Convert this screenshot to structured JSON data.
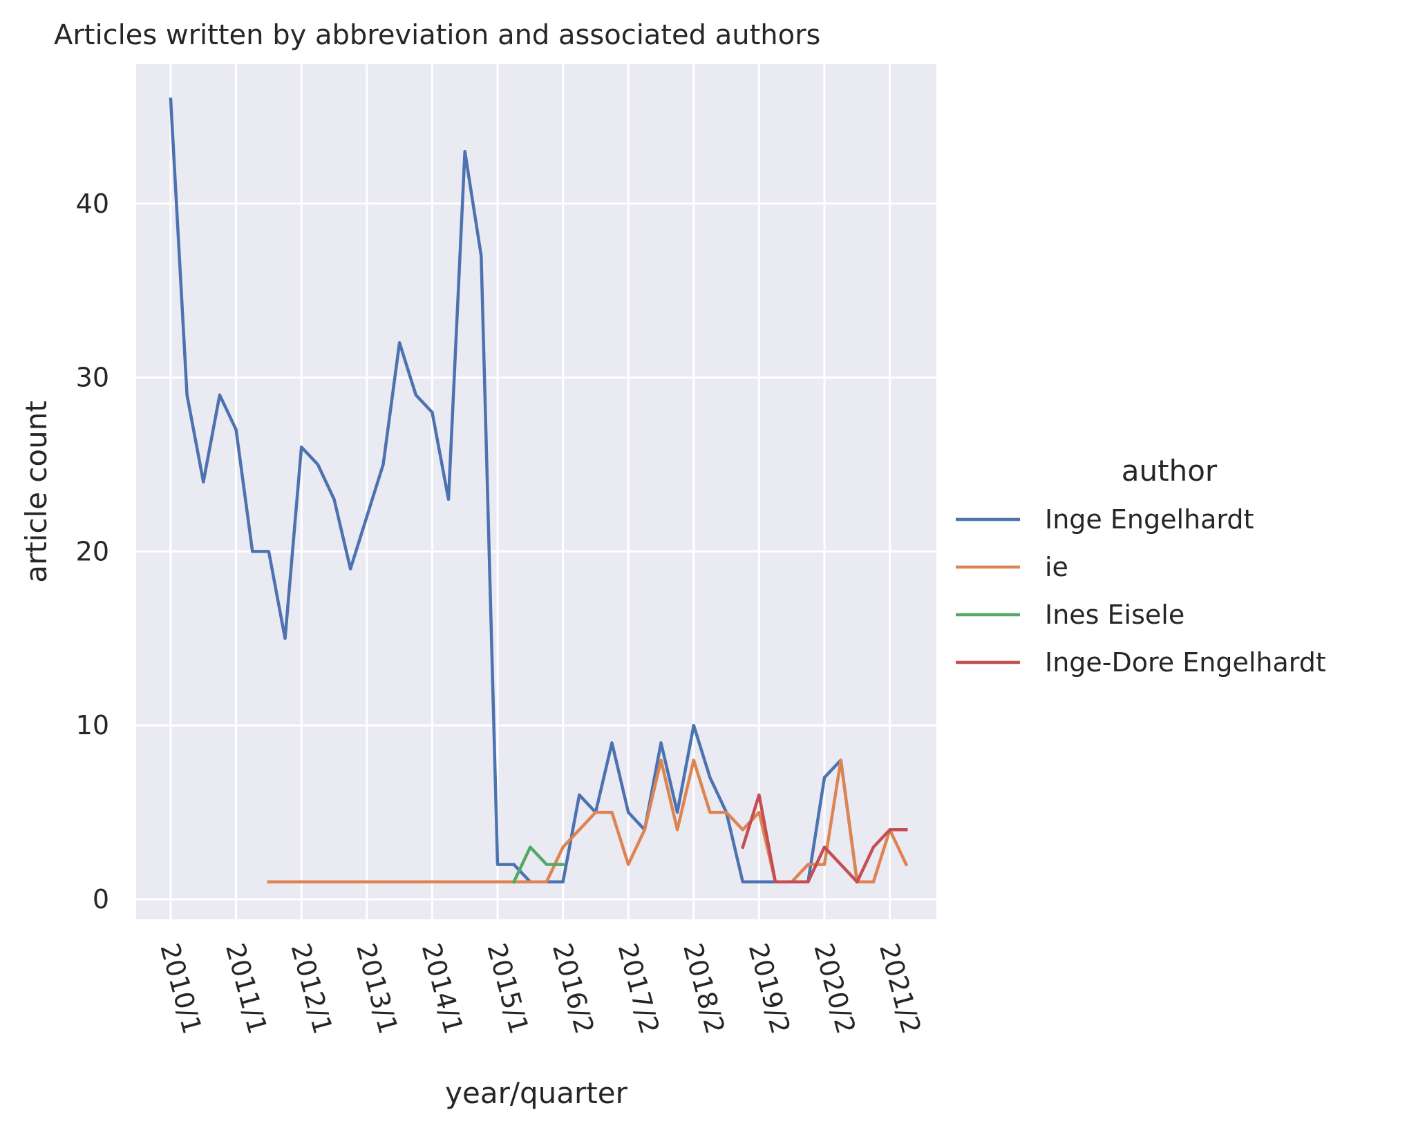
{
  "chart_data": {
    "type": "line",
    "title": "Articles written by abbreviation and associated authors",
    "xlabel": "year/quarter",
    "ylabel": "article count",
    "ylim": [
      -1.2,
      48.5
    ],
    "yticks": [
      0,
      10,
      20,
      30,
      40
    ],
    "grid": true,
    "legend_title": "author",
    "legend_position": "right",
    "categories": [
      "2010/1",
      "2010/2",
      "2010/3",
      "2010/4",
      "2011/1",
      "2011/2",
      "2011/3",
      "2011/4",
      "2012/1",
      "2012/2",
      "2012/3",
      "2012/4",
      "2013/1",
      "2013/2",
      "2013/3",
      "2013/4",
      "2014/1",
      "2014/2",
      "2014/3",
      "2014/4",
      "2015/1",
      "2015/2",
      "2015/3",
      "2015/4",
      "2016/2",
      "2016/3",
      "2016/4",
      "2017/1",
      "2017/2",
      "2017/3",
      "2017/4",
      "2018/1",
      "2018/2",
      "2018/3",
      "2018/4",
      "2019/1",
      "2019/2",
      "2019/3",
      "2019/4",
      "2020/1",
      "2020/2",
      "2020/3",
      "2020/4",
      "2021/1",
      "2021/2",
      "2021/3"
    ],
    "xtick_labels": [
      "2010/1",
      "2011/1",
      "2012/1",
      "2013/1",
      "2014/1",
      "2015/1",
      "2016/2",
      "2017/2",
      "2018/2",
      "2019/2",
      "2020/2",
      "2021/2"
    ],
    "series": [
      {
        "name": "Inge Engelhardt",
        "color": "#4c72b0",
        "values": [
          46,
          29,
          24,
          29,
          27,
          20,
          20,
          15,
          26,
          25,
          23,
          19,
          22,
          25,
          32,
          29,
          28,
          23,
          43,
          37,
          2,
          2,
          1,
          1,
          1,
          6,
          5,
          9,
          5,
          4,
          9,
          5,
          10,
          7,
          5,
          1,
          1,
          1,
          1,
          1,
          7,
          8,
          1,
          null,
          null,
          null
        ]
      },
      {
        "name": "ie",
        "color": "#dd8452",
        "values": [
          null,
          null,
          null,
          null,
          null,
          null,
          1,
          1,
          1,
          1,
          1,
          1,
          1,
          1,
          1,
          1,
          1,
          1,
          1,
          1,
          1,
          1,
          1,
          1,
          3,
          4,
          5,
          5,
          2,
          4,
          8,
          4,
          8,
          5,
          5,
          4,
          5,
          1,
          1,
          2,
          2,
          8,
          1,
          1,
          4,
          2
        ]
      },
      {
        "name": "Ines Eisele",
        "color": "#55a868",
        "values": [
          null,
          null,
          null,
          null,
          null,
          null,
          null,
          null,
          null,
          null,
          null,
          null,
          null,
          null,
          null,
          null,
          null,
          null,
          null,
          null,
          null,
          1,
          3,
          2,
          2,
          null,
          null,
          null,
          null,
          null,
          null,
          null,
          null,
          null,
          null,
          null,
          null,
          null,
          null,
          null,
          null,
          null,
          null,
          null,
          null,
          null
        ]
      },
      {
        "name": "Inge-Dore Engelhardt",
        "color": "#c44e52",
        "values": [
          null,
          null,
          null,
          null,
          null,
          null,
          null,
          null,
          null,
          null,
          null,
          null,
          null,
          null,
          null,
          null,
          null,
          null,
          null,
          null,
          null,
          null,
          null,
          null,
          null,
          null,
          null,
          null,
          null,
          null,
          null,
          null,
          null,
          null,
          null,
          3,
          6,
          1,
          1,
          1,
          3,
          2,
          1,
          3,
          4,
          4
        ]
      }
    ]
  }
}
